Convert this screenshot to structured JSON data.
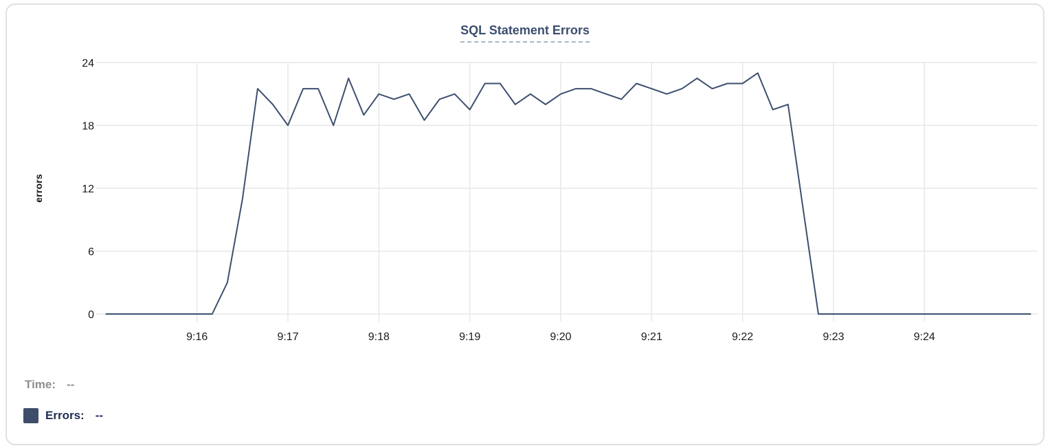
{
  "page": {
    "background": "#ffffff",
    "card_border_color": "#e0e0e0"
  },
  "chart": {
    "title": "SQL Statement Errors",
    "title_color": "#3b4d6e",
    "title_underline_color": "#a9b4ca",
    "y_axis_label": "errors",
    "line_color": "#3d4e6e",
    "grid_color": "#e7e7e7",
    "tick_label_color": "#1a1a1a"
  },
  "tooltip": {
    "time_label": "Time:",
    "time_value": "--",
    "time_color": "#8e8e8e",
    "series_label": "Errors:",
    "series_value": "--",
    "series_color": "#1f2c52",
    "swatch_color": "#3e4d69"
  },
  "chart_data": {
    "type": "line",
    "title": "SQL Statement Errors",
    "xlabel": "",
    "ylabel": "errors",
    "ylim": [
      0,
      24
    ],
    "yticks": [
      0,
      6,
      12,
      18,
      24
    ],
    "xticks": [
      "9:16",
      "9:17",
      "9:18",
      "9:19",
      "9:20",
      "9:21",
      "9:22",
      "9:23",
      "9:24"
    ],
    "x_window": [
      "9:14:58",
      "9:25:12"
    ],
    "grid": true,
    "legend_position": "bottom-left",
    "markers": false,
    "series": [
      {
        "name": "Errors",
        "color": "#3d4e6e",
        "x": [
          "9:15:00",
          "9:15:10",
          "9:15:20",
          "9:15:30",
          "9:15:40",
          "9:15:50",
          "9:16:00",
          "9:16:10",
          "9:16:20",
          "9:16:30",
          "9:16:40",
          "9:16:50",
          "9:17:00",
          "9:17:10",
          "9:17:20",
          "9:17:30",
          "9:17:40",
          "9:17:50",
          "9:18:00",
          "9:18:10",
          "9:18:20",
          "9:18:30",
          "9:18:40",
          "9:18:50",
          "9:19:00",
          "9:19:10",
          "9:19:20",
          "9:19:30",
          "9:19:40",
          "9:19:50",
          "9:20:00",
          "9:20:10",
          "9:20:20",
          "9:20:30",
          "9:20:40",
          "9:20:50",
          "9:21:00",
          "9:21:10",
          "9:21:20",
          "9:21:30",
          "9:21:40",
          "9:21:50",
          "9:22:00",
          "9:22:10",
          "9:22:20",
          "9:22:30",
          "9:22:40",
          "9:22:50",
          "9:23:00",
          "9:23:10",
          "9:23:20",
          "9:23:30",
          "9:23:40",
          "9:23:50",
          "9:24:00",
          "9:24:10",
          "9:24:20",
          "9:24:30",
          "9:24:40",
          "9:24:50",
          "9:25:00",
          "9:25:10"
        ],
        "values": [
          0,
          0,
          0,
          0,
          0,
          0,
          0,
          0,
          3,
          11,
          21.5,
          20,
          18,
          21.5,
          21.5,
          18,
          22.5,
          19,
          21,
          20.5,
          21,
          18.5,
          20.5,
          21,
          19.5,
          22,
          22,
          20,
          21,
          20,
          21,
          21.5,
          21.5,
          21,
          20.5,
          22,
          21.5,
          21,
          21.5,
          22.5,
          21.5,
          22,
          22,
          23,
          19.5,
          20,
          10,
          0,
          0,
          0,
          0,
          0,
          0,
          0,
          0,
          0,
          0,
          0,
          0,
          0,
          0,
          0
        ]
      }
    ]
  }
}
